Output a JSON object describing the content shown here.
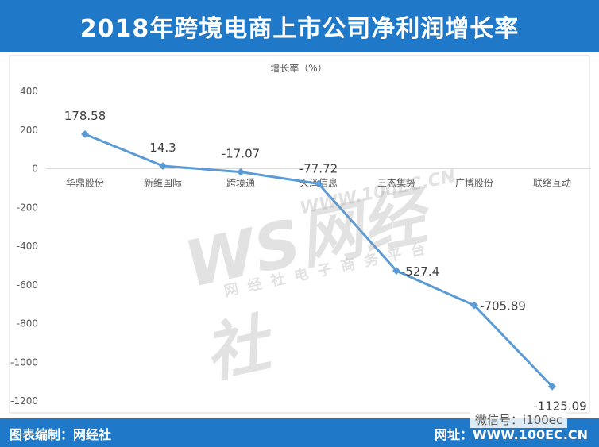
{
  "header": {
    "title": "2018年跨境电商上市公司净利润增长率"
  },
  "footer": {
    "left_label": "图表编制：网经社",
    "right_label": "网址：WWW.100EC.CN",
    "wechat": "微信号：i100ec"
  },
  "watermark": {
    "logo": "WS网经社",
    "url": "WWW.100EC.CN",
    "subtitle": "网经社电子商务平台"
  },
  "colors": {
    "header_bg": "#1f78c8",
    "line": "#5b9bd5",
    "axis": "#d9d9d9",
    "text": "#595959"
  },
  "chart_data": {
    "type": "line",
    "ylabel": "增长率（%）",
    "ylim": [
      -1200,
      400
    ],
    "yticks": [
      400,
      200,
      0,
      -200,
      -400,
      -600,
      -800,
      -1000,
      -1200
    ],
    "grid": false,
    "categories": [
      "华鼎股份",
      "新维国际",
      "跨境通",
      "天泽信息",
      "三态集势",
      "广博股份",
      "联络互动"
    ],
    "series": [
      {
        "values": [
          178.58,
          14.3,
          -17.07,
          -77.72,
          -527.4,
          -705.89,
          -1125.09
        ]
      }
    ],
    "data_labels": [
      "178.58",
      "14.3",
      "-17.07",
      "-77.72",
      "-527.4",
      "-705.89",
      "-1125.09"
    ]
  }
}
